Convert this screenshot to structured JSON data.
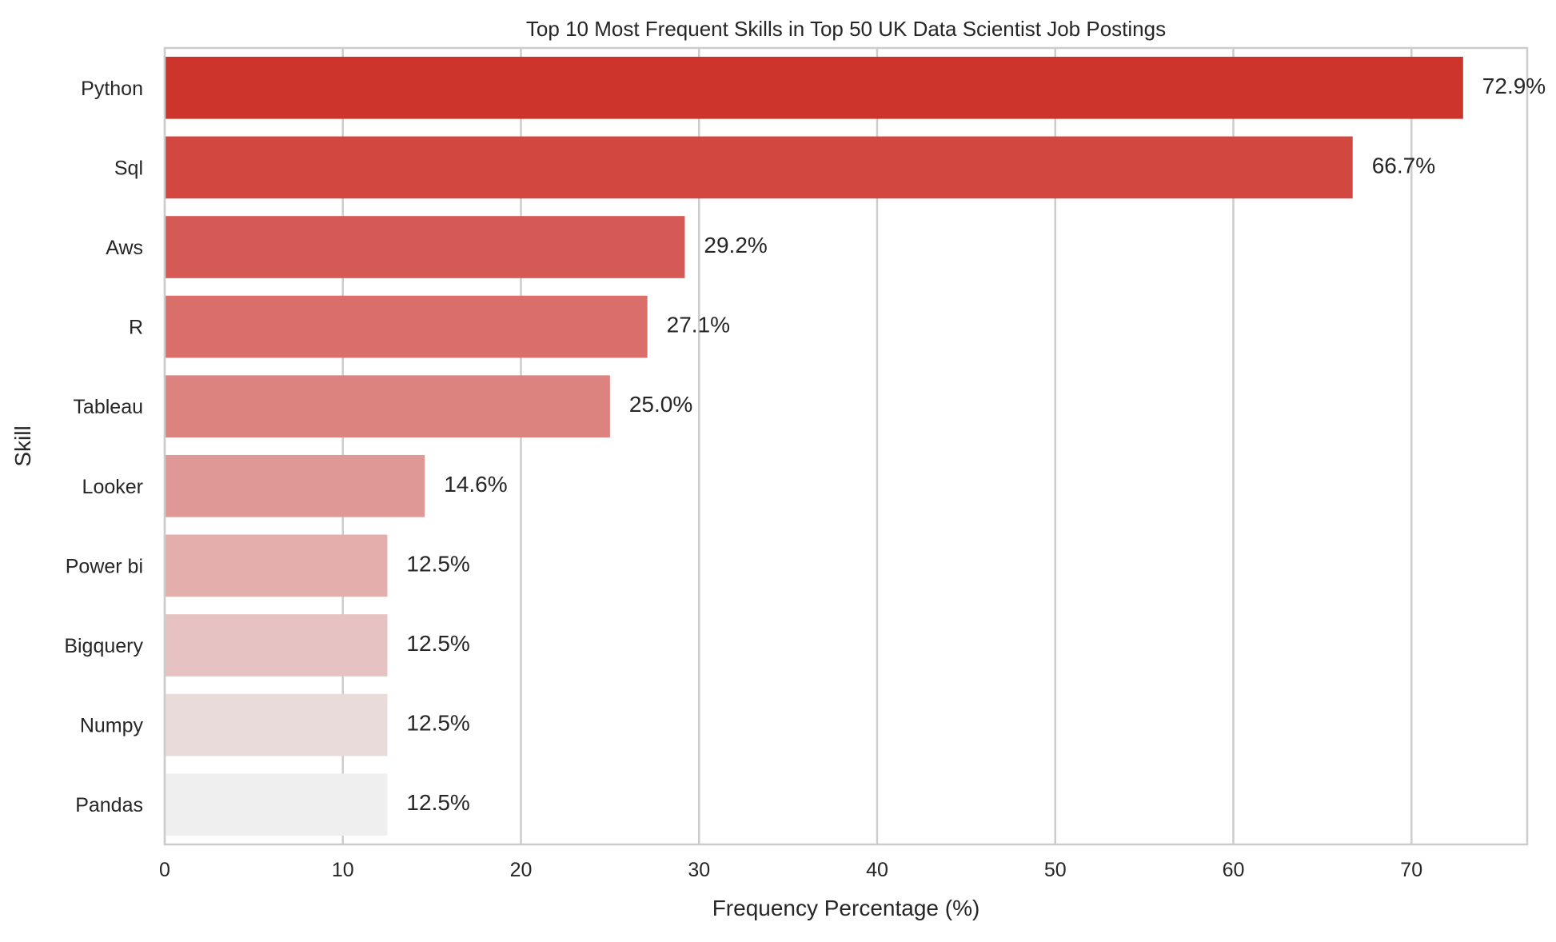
{
  "chart_data": {
    "type": "bar",
    "orientation": "horizontal",
    "title": "Top 10 Most Frequent Skills in Top 50 UK Data Scientist Job Postings",
    "xlabel": "Frequency Percentage (%)",
    "ylabel": "Skill",
    "categories": [
      "Python",
      "Sql",
      "Aws",
      "R",
      "Tableau",
      "Looker",
      "Power bi",
      "Bigquery",
      "Numpy",
      "Pandas"
    ],
    "values": [
      72.9,
      66.7,
      29.2,
      27.1,
      25.0,
      14.6,
      12.5,
      12.5,
      12.5,
      12.5
    ],
    "value_labels": [
      "72.9%",
      "66.7%",
      "29.2%",
      "27.1%",
      "25.0%",
      "14.6%",
      "12.5%",
      "12.5%",
      "12.5%",
      "12.5%"
    ],
    "colors": [
      "#cd342b",
      "#d2473f",
      "#d55a55",
      "#d96e6a",
      "#dc827f",
      "#df9896",
      "#e3aeac",
      "#e6c3c2",
      "#eadbdb",
      "#efefef"
    ],
    "xticks": [
      0,
      10,
      20,
      30,
      40,
      50,
      60,
      70
    ],
    "xlim": [
      0,
      76.5
    ],
    "grid": true,
    "grid_color": "#cccccc"
  }
}
